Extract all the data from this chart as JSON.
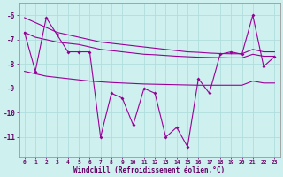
{
  "xlabel": "Windchill (Refroidissement éolien,°C)",
  "background_color": "#cef0ef",
  "grid_color": "#b0dede",
  "line_color": "#990099",
  "x_values": [
    0,
    1,
    2,
    3,
    4,
    5,
    6,
    7,
    8,
    9,
    10,
    11,
    12,
    13,
    14,
    15,
    16,
    17,
    18,
    19,
    20,
    21,
    22,
    23
  ],
  "y_main": [
    -6.7,
    -8.3,
    -6.1,
    -6.8,
    -7.5,
    -7.5,
    -7.5,
    -11.0,
    -9.2,
    -9.4,
    -10.5,
    -9.0,
    -9.2,
    -11.0,
    -10.6,
    -11.4,
    -8.6,
    -9.2,
    -7.6,
    -7.5,
    -7.6,
    -6.0,
    -8.1,
    -7.7
  ],
  "y_top1": [
    -6.1,
    -6.3,
    -6.5,
    -6.7,
    -6.8,
    -6.9,
    -7.0,
    -7.1,
    -7.15,
    -7.2,
    -7.25,
    -7.3,
    -7.35,
    -7.4,
    -7.45,
    -7.5,
    -7.52,
    -7.55,
    -7.57,
    -7.58,
    -7.58,
    -7.4,
    -7.5,
    -7.5
  ],
  "y_top2": [
    -6.7,
    -6.9,
    -7.0,
    -7.1,
    -7.15,
    -7.2,
    -7.3,
    -7.4,
    -7.45,
    -7.5,
    -7.55,
    -7.6,
    -7.62,
    -7.65,
    -7.68,
    -7.7,
    -7.72,
    -7.73,
    -7.74,
    -7.75,
    -7.75,
    -7.6,
    -7.68,
    -7.68
  ],
  "y_bot1": [
    -8.3,
    -8.4,
    -8.5,
    -8.55,
    -8.6,
    -8.65,
    -8.7,
    -8.73,
    -8.76,
    -8.78,
    -8.8,
    -8.82,
    -8.83,
    -8.84,
    -8.85,
    -8.86,
    -8.87,
    -8.87,
    -8.87,
    -8.87,
    -8.87,
    -8.7,
    -8.78,
    -8.78
  ],
  "ylim": [
    -11.8,
    -5.5
  ],
  "xlim": [
    -0.5,
    23.5
  ],
  "yticks": [
    -6,
    -7,
    -8,
    -9,
    -10,
    -11
  ],
  "xticks": [
    0,
    1,
    2,
    3,
    4,
    5,
    6,
    7,
    8,
    9,
    10,
    11,
    12,
    13,
    14,
    15,
    16,
    17,
    18,
    19,
    20,
    21,
    22,
    23
  ]
}
